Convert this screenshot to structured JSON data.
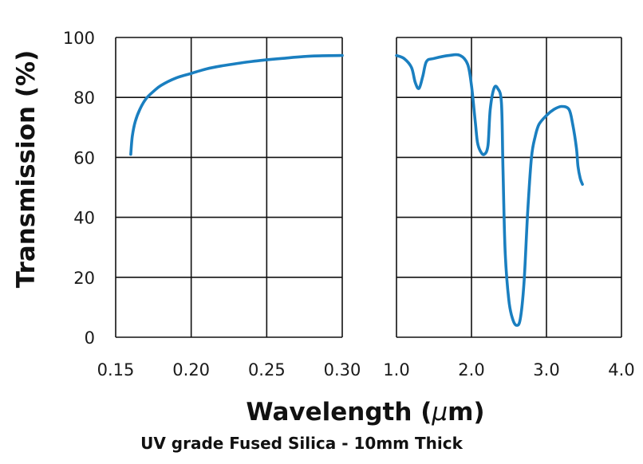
{
  "chart_data": {
    "type": "line",
    "ylabel": "Transmission (%)",
    "xlabel_text": "Wavelength (",
    "xlabel_mu": "μ",
    "xlabel_unit": "m)",
    "caption": "UV grade Fused Silica - 10mm Thick",
    "ylim": [
      0,
      100
    ],
    "y_ticks": [
      0,
      20,
      40,
      60,
      80,
      100
    ],
    "y_tick_labels": [
      "0",
      "20",
      "40",
      "60",
      "80",
      "100"
    ],
    "line_color": "#1a7fc0",
    "grid": true,
    "panels": [
      {
        "xlim": [
          0.15,
          0.3
        ],
        "x_ticks": [
          0.15,
          0.2,
          0.25,
          0.3
        ],
        "x_tick_labels": [
          "0.15",
          "0.20",
          "0.25",
          "0.30"
        ],
        "series": [
          {
            "x": [
              0.16,
              0.161,
              0.163,
              0.166,
              0.17,
              0.175,
              0.18,
              0.19,
              0.2,
              0.21,
              0.22,
              0.24,
              0.26,
              0.28,
              0.3
            ],
            "y": [
              61,
              67,
              72,
              76,
              79.5,
              82,
              84,
              86.5,
              88,
              89.5,
              90.5,
              92,
              93,
              93.8,
              94
            ]
          }
        ]
      },
      {
        "xlim": [
          1.0,
          4.0
        ],
        "x_ticks": [
          1.0,
          2.0,
          3.0,
          4.0
        ],
        "x_tick_labels": [
          "1.0",
          "2.0",
          "3.0",
          "4.0"
        ],
        "series": [
          {
            "x": [
              1.0,
              1.1,
              1.2,
              1.25,
              1.3,
              1.35,
              1.4,
              1.5,
              1.7,
              1.85,
              1.95,
              2.0,
              2.05,
              2.08,
              2.12,
              2.17,
              2.22,
              2.25,
              2.3,
              2.35,
              2.4,
              2.42,
              2.45,
              2.5,
              2.55,
              2.6,
              2.65,
              2.7,
              2.75,
              2.8,
              2.85,
              2.9,
              3.0,
              3.1,
              3.2,
              3.3,
              3.35,
              3.4,
              3.42,
              3.45,
              3.48
            ],
            "y": [
              94,
              93,
              90,
              85,
              83,
              87,
              92,
              93,
              94,
              94,
              91,
              84,
              72,
              65,
              62,
              61,
              64,
              76,
              83,
              83,
              78,
              56,
              28,
              12,
              6,
              4,
              6,
              18,
              42,
              60,
              67,
              71,
              74,
              76,
              77,
              76,
              71,
              63,
              57,
              53,
              51
            ]
          }
        ]
      }
    ]
  }
}
